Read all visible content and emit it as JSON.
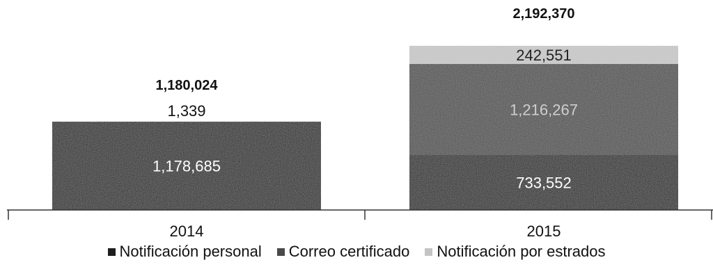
{
  "chart_data": {
    "type": "bar",
    "stacked": true,
    "categories": [
      "2014",
      "2015"
    ],
    "series": [
      {
        "name": "Notificación personal",
        "values": [
          1178685,
          733552
        ],
        "labels": [
          "1,178,685",
          "733,552"
        ],
        "color": "#1e1e1e",
        "label_color": "#ffffff"
      },
      {
        "name": "Correo certificado",
        "values": [
          1339,
          1216267
        ],
        "labels": [
          "1,339",
          "1,216,267"
        ],
        "color": "#4a4a4a",
        "label_color": "#cfcfcf"
      },
      {
        "name": "Notificación por estrados",
        "values": [
          0,
          242551
        ],
        "labels": [
          "",
          "242,551"
        ],
        "color": "#c4c4c4",
        "label_color": "#222222"
      }
    ],
    "totals": [
      1180024,
      2192370
    ],
    "total_labels": [
      "1,180,024",
      "2,192,370"
    ],
    "ylim": [
      0,
      2600000
    ],
    "legend_position": "bottom",
    "grid": false
  }
}
